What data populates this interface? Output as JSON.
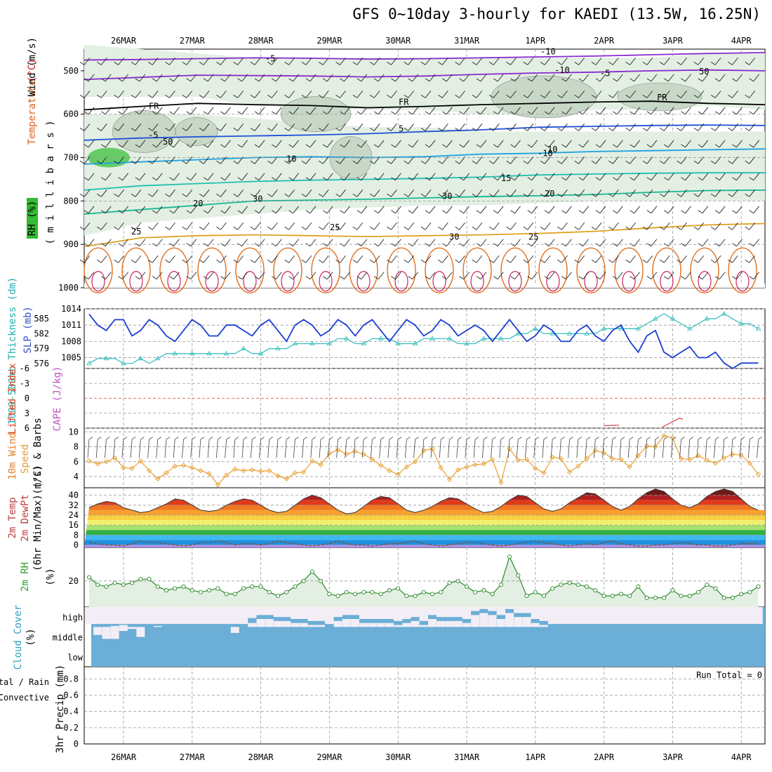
{
  "title": "GFS 0~10day 3-hourly for KAEDI (13.5W, 16.25N)",
  "dates": [
    "26MAR",
    "27MAR",
    "28MAR",
    "29MAR",
    "30MAR",
    "31MAR",
    "1APR",
    "2APR",
    "3APR",
    "4APR"
  ],
  "colors": {
    "grid": "#999999",
    "rh_fill": "#bfe0bf",
    "cloud": "#6baed6",
    "wind_orange": "#e8a030",
    "thick_cyan": "#3cc0c0",
    "slp_blue": "#1a3fd0"
  },
  "labels": {
    "panel1": {
      "wind": "Wind (m/s)",
      "temperature": "Temperature (°C)",
      "rh": "RH (%)",
      "mb": "( m i l l i b a r s )"
    },
    "panel2": {
      "thickness": "1000-500mb Thickness (dm)",
      "slp": "SLP (mb)"
    },
    "panel3": {
      "lifted": "Lifted Index",
      "cape": "CAPE (J/kg)"
    },
    "panel4": {
      "wind": "10m Wind",
      "speed": "Speed",
      "barbs": "(m/s) & Barbs"
    },
    "panel5": {
      "temp": "2m Temp",
      "dewpt": "2m DewPt",
      "minmax": "(6hr Min/Max) (°C)"
    },
    "panel6": {
      "rh": "2m RH",
      "unit": "(%)"
    },
    "panel7": {
      "cloud": "Cloud Cover",
      "unit": "(%)",
      "levels": [
        "high",
        "middle",
        "low"
      ]
    },
    "panel8": {
      "totalrain": "Total / Rain",
      "convective": "Convective",
      "precip": "3hr Precip (mm)",
      "run_total": "Run Total = 0"
    }
  },
  "contour_labels": [
    "-5",
    "-10",
    "-5",
    "FR",
    "FR",
    "FR",
    "-5",
    "5",
    "-10",
    "10",
    "15",
    "20",
    "20",
    "25",
    "25",
    "25",
    "30",
    "30",
    "30",
    "50",
    "50",
    "-10",
    "10"
  ],
  "chart_data": [
    {
      "type": "line",
      "name": "upper_air_cross_section",
      "ylabel": "millibars",
      "y_ticks": [
        500,
        600,
        700,
        800,
        900,
        1000
      ],
      "ylim": [
        1000,
        450
      ],
      "isotherm_levels_mb": {
        "-10": [
          475,
          474,
          472,
          470,
          471,
          473,
          472,
          470,
          468,
          466,
          463,
          460,
          458
        ],
        "-5": [
          520,
          515,
          510,
          511,
          512,
          514,
          512,
          508,
          505,
          503,
          500,
          498,
          500
        ],
        "FR": [
          590,
          582,
          575,
          578,
          580,
          585,
          582,
          578,
          575,
          572,
          570,
          575,
          578
        ],
        "5": [
          660,
          655,
          652,
          650,
          648,
          645,
          640,
          636,
          630,
          628,
          626,
          625,
          626
        ],
        "10": [
          715,
          710,
          705,
          700,
          698,
          700,
          698,
          692,
          690,
          686,
          684,
          682,
          680
        ],
        "15": [
          775,
          765,
          760,
          755,
          752,
          750,
          748,
          745,
          740,
          738,
          736,
          735,
          735
        ],
        "20": [
          830,
          820,
          810,
          800,
          798,
          796,
          793,
          790,
          788,
          785,
          780,
          776,
          775
        ],
        "25": [
          905,
          885,
          880,
          878,
          880,
          882,
          880,
          878,
          875,
          870,
          862,
          855,
          852
        ]
      }
    },
    {
      "type": "line",
      "name": "thickness_slp",
      "x_days": [
        0,
        0.125,
        0.25,
        0.375,
        0.5,
        0.625,
        0.75,
        0.875,
        1,
        1.125,
        1.25,
        1.375,
        1.5,
        1.625,
        1.75,
        1.875,
        2,
        2.125,
        2.25,
        2.375,
        2.5,
        2.625,
        2.75,
        2.875,
        3,
        3.125,
        3.25,
        3.375,
        3.5,
        3.625,
        3.75,
        3.875,
        4,
        4.125,
        4.25,
        4.375,
        4.5,
        4.625,
        4.75,
        4.875,
        5,
        5.125,
        5.25,
        5.375,
        5.5,
        5.625,
        5.75,
        5.875,
        6,
        6.125,
        6.25,
        6.375,
        6.5,
        6.625,
        6.75,
        6.875,
        7,
        7.125,
        7.25,
        7.375,
        7.5,
        7.625,
        7.75,
        7.875,
        8,
        8.125,
        8.25,
        8.375,
        8.5,
        8.625,
        8.75,
        8.875,
        9,
        9.125,
        9.25,
        9.375,
        9.5,
        9.625,
        9.75
      ],
      "slp_mb": [
        1013,
        1011,
        1010,
        1012,
        1012,
        1009,
        1010,
        1012,
        1011,
        1009,
        1008,
        1010,
        1012,
        1011,
        1009,
        1009,
        1011,
        1011,
        1010,
        1009,
        1011,
        1012,
        1010,
        1008,
        1011,
        1012,
        1011,
        1009,
        1010,
        1012,
        1011,
        1009,
        1011,
        1012,
        1010,
        1008,
        1010,
        1012,
        1011,
        1009,
        1010,
        1012,
        1011,
        1009,
        1010,
        1011,
        1010,
        1008,
        1010,
        1012,
        1010,
        1008,
        1009,
        1011,
        1010,
        1008,
        1008,
        1010,
        1011,
        1009,
        1008,
        1010,
        1011,
        1008,
        1006,
        1009,
        1010,
        1006,
        1005,
        1006,
        1007,
        1005,
        1005,
        1006,
        1004,
        1003,
        1004,
        1004,
        1004
      ],
      "thickness_dm": [
        576,
        577,
        577,
        577,
        576,
        576,
        577,
        576,
        577,
        578,
        578,
        578,
        578,
        578,
        578,
        578,
        578,
        578,
        579,
        578,
        578,
        579,
        579,
        579,
        580,
        580,
        580,
        580,
        580,
        581,
        581,
        580,
        580,
        581,
        581,
        581,
        580,
        580,
        580,
        581,
        581,
        581,
        581,
        580,
        580,
        580,
        581,
        581,
        581,
        581,
        582,
        582,
        583,
        582,
        582,
        582,
        582,
        582,
        582,
        582,
        583,
        583,
        583,
        583,
        583,
        584,
        585,
        586,
        585,
        584,
        583,
        584,
        585,
        585,
        586,
        585,
        584,
        584,
        583
      ],
      "ylim_slp": [
        1003,
        1014
      ],
      "ylim_thk": [
        575,
        587
      ],
      "y_ticks_slp": [
        1005,
        1008,
        1011,
        1014
      ],
      "y_ticks_thk": [
        576,
        579,
        582,
        585
      ]
    },
    {
      "type": "line",
      "name": "lifted_index_cape",
      "y_ticks": [
        6,
        3,
        0,
        -3,
        -6
      ],
      "ylim": [
        6,
        -6
      ],
      "lifted_index_segments": [
        {
          "x_days": [
            7.5,
            7.72
          ],
          "values": [
            5.5,
            5.4
          ]
        },
        {
          "x_days": [
            8.35,
            8.6,
            8.65
          ],
          "values": [
            5.8,
            4.0,
            4.2
          ]
        }
      ]
    },
    {
      "type": "line",
      "name": "wind10m",
      "ylabel": "(m/s)",
      "y_ticks": [
        4,
        6,
        8,
        10
      ],
      "ylim": [
        2.5,
        10.5
      ],
      "speed": [
        6.1,
        5.7,
        6.0,
        6.5,
        5.2,
        5.1,
        6.1,
        4.8,
        3.7,
        4.5,
        5.4,
        5.5,
        5.2,
        4.8,
        4.4,
        2.9,
        4.2,
        5.0,
        4.8,
        4.9,
        4.7,
        4.8,
        4.1,
        3.7,
        4.5,
        4.6,
        6.1,
        5.6,
        7.1,
        7.6,
        7.0,
        7.4,
        7.0,
        6.3,
        5.5,
        4.8,
        4.3,
        5.3,
        6.0,
        7.5,
        7.7,
        5.2,
        3.6,
        4.9,
        5.3,
        5.6,
        5.7,
        6.3,
        3.2,
        7.7,
        6.2,
        6.3,
        5.1,
        4.5,
        6.6,
        6.4,
        4.6,
        5.4,
        6.4,
        7.5,
        7.2,
        6.4,
        6.3,
        5.3,
        6.8,
        8.1,
        8.0,
        9.5,
        9.2,
        6.4,
        6.3,
        6.8,
        6.2,
        5.8,
        6.5,
        7.0,
        6.9,
        5.8,
        4.3
      ]
    },
    {
      "type": "area",
      "name": "temp2m",
      "ylabel": "(°C)",
      "y_ticks": [
        0,
        8,
        16,
        24,
        32,
        40
      ],
      "ylim": [
        -2,
        46
      ],
      "temperature": [
        30,
        33,
        35,
        34,
        30,
        28,
        26,
        27,
        30,
        33,
        37,
        36,
        32,
        28,
        27,
        28,
        32,
        35,
        37,
        36,
        32,
        28,
        26,
        27,
        32,
        37,
        40,
        38,
        33,
        28,
        25,
        26,
        31,
        36,
        39,
        38,
        33,
        28,
        26,
        28,
        31,
        35,
        38,
        37,
        33,
        29,
        26,
        27,
        31,
        36,
        40,
        39,
        34,
        29,
        27,
        29,
        34,
        38,
        42,
        41,
        36,
        31,
        28,
        31,
        37,
        42,
        45,
        43,
        37,
        32,
        30,
        33,
        39,
        43,
        45,
        43,
        37,
        31,
        28
      ],
      "dewpoint": [
        2,
        1,
        0,
        0,
        -1,
        1,
        3,
        2,
        2,
        1,
        0,
        -1,
        0,
        2,
        2,
        3,
        2,
        0,
        1,
        1,
        0,
        1,
        3,
        2,
        1,
        0,
        -1,
        0,
        1,
        3,
        1,
        0,
        0,
        -1,
        0,
        1,
        1,
        2,
        3,
        1,
        0,
        -1,
        0,
        1,
        2,
        2,
        1,
        0,
        -1,
        0,
        1,
        2,
        3,
        2,
        1,
        0,
        -1,
        0,
        1,
        0,
        2,
        3,
        1,
        0,
        -1,
        -1,
        0,
        0,
        1,
        2,
        1,
        0,
        0,
        -1,
        -1,
        0,
        1,
        1,
        1
      ]
    },
    {
      "type": "area",
      "name": "rh2m",
      "ylabel": "(%)",
      "y_ticks": [
        20
      ],
      "ylim": [
        6,
        38
      ],
      "values": [
        22,
        18,
        17,
        19,
        18,
        19,
        21,
        21,
        17,
        15,
        16,
        17,
        15,
        14,
        15,
        16,
        13,
        13,
        16,
        17,
        17,
        14,
        12,
        14,
        17,
        20,
        25,
        20,
        13,
        12,
        14,
        13,
        14,
        14,
        13,
        15,
        16,
        12,
        12,
        14,
        13,
        14,
        19,
        20,
        17,
        14,
        15,
        13,
        18,
        33,
        23,
        12,
        14,
        12,
        16,
        18,
        19,
        18,
        17,
        15,
        12,
        12,
        13,
        12,
        17,
        11,
        11,
        11,
        15,
        12,
        12,
        14,
        18,
        16,
        11,
        11,
        13,
        14,
        17
      ]
    },
    {
      "type": "bar",
      "name": "cloud_cover",
      "levels": [
        "high",
        "middle",
        "low"
      ],
      "high": [
        0,
        0,
        0,
        5,
        10,
        0,
        0,
        0,
        5,
        0,
        0,
        0,
        0,
        0,
        0,
        0,
        0,
        0,
        0,
        20,
        40,
        40,
        30,
        30,
        20,
        20,
        10,
        10,
        0,
        30,
        40,
        40,
        20,
        20,
        20,
        20,
        10,
        20,
        30,
        10,
        40,
        30,
        30,
        30,
        20,
        60,
        70,
        60,
        40,
        70,
        50,
        50,
        20,
        10,
        0,
        0,
        0,
        0,
        0,
        0,
        0,
        0,
        0,
        0,
        0,
        0,
        0,
        0,
        0,
        0,
        0,
        0,
        0,
        0,
        0,
        0,
        0,
        0,
        0
      ],
      "middle": [
        0,
        40,
        60,
        60,
        20,
        10,
        50,
        0,
        0,
        0,
        0,
        0,
        0,
        0,
        0,
        0,
        0,
        30,
        0,
        0,
        0,
        0,
        0,
        0,
        0,
        0,
        0,
        0,
        0,
        0,
        0,
        0,
        0,
        0,
        0,
        0,
        0,
        0,
        0,
        0,
        0,
        0,
        0,
        0,
        0,
        0,
        0,
        0,
        0,
        0,
        0,
        0,
        0,
        0,
        0,
        0,
        0,
        0,
        0,
        0,
        0,
        0,
        0,
        0,
        0,
        0,
        0,
        0,
        0,
        0,
        0,
        0,
        0,
        0,
        0,
        0,
        0,
        0,
        0
      ],
      "low": [
        0,
        0,
        0,
        0,
        0,
        0,
        0,
        0,
        0,
        0,
        0,
        0,
        0,
        0,
        0,
        0,
        0,
        0,
        0,
        0,
        0,
        0,
        0,
        0,
        0,
        0,
        0,
        0,
        0,
        0,
        0,
        0,
        0,
        0,
        0,
        0,
        0,
        0,
        0,
        0,
        0,
        0,
        0,
        0,
        0,
        0,
        0,
        0,
        0,
        0,
        0,
        0,
        0,
        0,
        0,
        0,
        0,
        0,
        0,
        0,
        0,
        0,
        0,
        0,
        0,
        0,
        0,
        0,
        0,
        0,
        0,
        0,
        0,
        0,
        0,
        0,
        0,
        0,
        0
      ]
    },
    {
      "type": "bar",
      "name": "precip3hr",
      "ylabel": "3hr Precip (mm)",
      "y_ticks": [
        0,
        0.2,
        0.4,
        0.6,
        0.8
      ],
      "ylim": [
        0,
        0.95
      ],
      "values": [
        0,
        0,
        0,
        0,
        0,
        0,
        0,
        0,
        0,
        0,
        0,
        0,
        0,
        0,
        0,
        0,
        0,
        0,
        0,
        0,
        0,
        0,
        0,
        0,
        0,
        0,
        0,
        0,
        0,
        0,
        0,
        0,
        0,
        0,
        0,
        0,
        0,
        0,
        0,
        0,
        0,
        0,
        0,
        0,
        0,
        0,
        0,
        0,
        0,
        0,
        0,
        0,
        0,
        0,
        0,
        0,
        0,
        0,
        0,
        0,
        0,
        0,
        0,
        0,
        0,
        0,
        0,
        0,
        0,
        0,
        0,
        0,
        0,
        0,
        0,
        0,
        0,
        0,
        0
      ]
    }
  ]
}
